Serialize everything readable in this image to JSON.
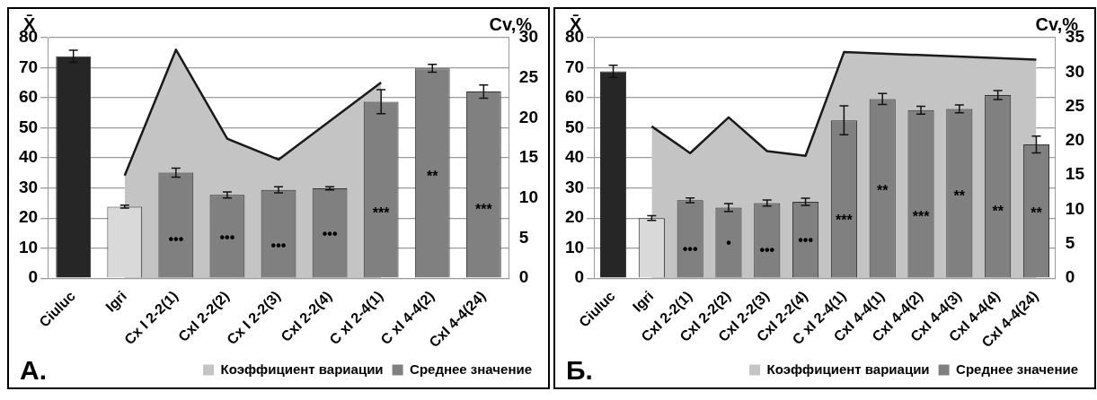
{
  "chart_data": [
    {
      "type": "bar",
      "title": "A.",
      "ylabel": "X̄",
      "y2label": "Cv,%",
      "categories": [
        "Ciuluc",
        "Igri",
        "Cx I 2-2(1)",
        "CxI 2-2(2)",
        "Cx I 2-2(3)",
        "CxI 2-2(4)",
        "C xI 2-4(1)",
        "C xI 4-4(2)",
        "CxI 4-4(24)"
      ],
      "series": [
        {
          "name": "Коэффициент вариации",
          "type": "area",
          "axis": "y2",
          "color": "#c4c4c4",
          "values": [
            null,
            12.8,
            28.5,
            17.4,
            14.8,
            null,
            24.4,
            null,
            null
          ]
        },
        {
          "name": "Среднее значение",
          "type": "bar",
          "color": "#808080",
          "colors": [
            "#262626",
            "#d9d9d9",
            "#808080",
            "#808080",
            "#808080",
            "#808080",
            "#808080",
            "#808080",
            "#808080"
          ],
          "values": [
            73.8,
            23.8,
            35.1,
            27.7,
            29.4,
            29.9,
            58.7,
            69.8,
            62.1
          ],
          "errors": [
            2,
            0.5,
            1.5,
            1,
            1,
            0.5,
            4,
            1.3,
            2.2
          ],
          "value_labels": [
            null,
            null,
            "•••",
            "•••",
            "•••",
            "•••",
            "***",
            "**",
            "***"
          ]
        }
      ],
      "ylim": [
        0,
        80
      ],
      "yticks": [
        0,
        10,
        20,
        30,
        40,
        50,
        60,
        70,
        80
      ],
      "y2lim": [
        0,
        30
      ],
      "y2ticks": [
        0,
        5,
        10,
        15,
        20,
        25,
        30
      ],
      "grid": "y",
      "legend": "bottom"
    },
    {
      "type": "bar",
      "title": "Б.",
      "ylabel": "X̄",
      "y2label": "Cv,%",
      "categories": [
        "Ciuluc",
        "Igri",
        "CxI 2-2(1)",
        "CxI 2-2(2)",
        "CxI 2-2(3)",
        "CxI 2-2(4)",
        "C xI 2-4(1)",
        "CxI 4-4(1)",
        "CxI 4-4(2)",
        "CxI 4-4(3)",
        "CxI 4-4(4)",
        "CxI 4-4(24)"
      ],
      "series": [
        {
          "name": "Коэффициент вариации",
          "type": "area",
          "axis": "y2",
          "color": "#c4c4c4",
          "values": [
            null,
            22.1,
            18.2,
            23.4,
            18.5,
            17.8,
            32.9,
            null,
            null,
            null,
            null,
            31.8
          ]
        },
        {
          "name": "Среднее значение",
          "type": "bar",
          "color": "#808080",
          "colors": [
            "#262626",
            "#d9d9d9",
            "#808080",
            "#808080",
            "#808080",
            "#808080",
            "#808080",
            "#808080",
            "#808080",
            "#808080",
            "#808080",
            "#808080"
          ],
          "values": [
            68.8,
            20,
            25.9,
            23.5,
            25,
            25.4,
            52.5,
            59.6,
            55.9,
            56.3,
            60.9,
            44.5
          ],
          "errors": [
            2,
            0.8,
            0.8,
            1.3,
            1,
            1.2,
            4.8,
            1.8,
            1.3,
            1.3,
            1.5,
            2.8
          ],
          "value_labels": [
            null,
            null,
            "•••",
            "•",
            "•••",
            "•••",
            "***",
            "**",
            "***",
            "**",
            "**",
            "**"
          ]
        }
      ],
      "ylim": [
        0,
        80
      ],
      "yticks": [
        0,
        10,
        20,
        30,
        40,
        50,
        60,
        70,
        80
      ],
      "y2lim": [
        0,
        35
      ],
      "y2ticks": [
        0,
        5,
        10,
        15,
        20,
        25,
        30,
        35
      ],
      "grid": "y",
      "legend": "bottom"
    }
  ]
}
